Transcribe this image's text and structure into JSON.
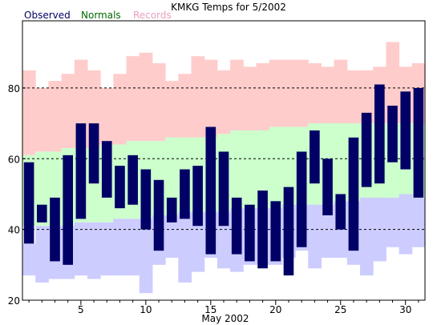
{
  "chart_data": {
    "type": "bar",
    "title": "KMKG Temps for 5/2002",
    "xlabel": "May 2002",
    "ylabel": "",
    "xlim": [
      0.5,
      31.5
    ],
    "ylim": [
      20,
      99
    ],
    "x_ticks": [
      5,
      10,
      15,
      20,
      25,
      30
    ],
    "y_ticks": [
      20,
      40,
      60,
      80
    ],
    "grid": "dashed horizontal at 40, 60, 80",
    "legend": {
      "placement": "top-left",
      "entries": [
        {
          "label": "Observed",
          "color": "#000066"
        },
        {
          "label": "Normals",
          "color": "#006600"
        },
        {
          "label": "Records",
          "color": "#e8a0c0"
        }
      ]
    },
    "colors": {
      "observed": "#000066",
      "normals_band": "#ccffcc",
      "records_high_band": "#ffcccc",
      "records_low_band": "#ccccff",
      "grid": "#000000"
    },
    "days": [
      1,
      2,
      3,
      4,
      5,
      6,
      7,
      8,
      9,
      10,
      11,
      12,
      13,
      14,
      15,
      16,
      17,
      18,
      19,
      20,
      21,
      22,
      23,
      24,
      25,
      26,
      27,
      28,
      29,
      30,
      31
    ],
    "series": [
      {
        "name": "Records",
        "type": "band_high",
        "upper": [
          85,
          80,
          82,
          84,
          88,
          85,
          80,
          84,
          89,
          90,
          87,
          82,
          84,
          89,
          88,
          85,
          88,
          86,
          87,
          88,
          88,
          88,
          87,
          86,
          88,
          85,
          85,
          86,
          93,
          86,
          87
        ],
        "lower": [
          61,
          62,
          62,
          63,
          63,
          63,
          64,
          64,
          65,
          65,
          65,
          66,
          66,
          66,
          66,
          67,
          68,
          68,
          68,
          69,
          69,
          69,
          70,
          70,
          70,
          70,
          70,
          70,
          70,
          70,
          70
        ]
      },
      {
        "name": "Normals",
        "type": "band",
        "upper": [
          61,
          62,
          62,
          63,
          63,
          63,
          64,
          64,
          65,
          65,
          65,
          66,
          66,
          66,
          66,
          67,
          68,
          68,
          68,
          69,
          69,
          69,
          70,
          70,
          70,
          70,
          70,
          70,
          70,
          70,
          70
        ],
        "lower": [
          41,
          41,
          41,
          41,
          42,
          42,
          42,
          43,
          43,
          43,
          44,
          44,
          45,
          45,
          45,
          45,
          46,
          46,
          46,
          46,
          47,
          47,
          47,
          47,
          48,
          48,
          48,
          48,
          49,
          49,
          49
        ]
      },
      {
        "name": "Records",
        "type": "band_low",
        "upper": [
          36,
          41,
          41,
          41,
          42,
          42,
          42,
          43,
          43,
          43,
          44,
          44,
          45,
          45,
          45,
          45,
          46,
          46,
          46,
          46,
          47,
          47,
          47,
          47,
          48,
          48,
          49,
          49,
          49,
          50,
          49
        ],
        "lower": [
          27,
          25,
          26,
          26,
          27,
          26,
          27,
          27,
          27,
          22,
          30,
          32,
          25,
          28,
          32,
          29,
          28,
          30,
          30,
          30,
          32,
          34,
          29,
          32,
          32,
          30,
          27,
          31,
          35,
          33,
          35
        ]
      },
      {
        "name": "Observed",
        "type": "range_bar",
        "low": [
          36,
          42,
          31,
          30,
          43,
          53,
          49,
          46,
          47,
          40,
          34,
          42,
          43,
          41,
          33,
          41,
          33,
          31,
          29,
          31,
          27,
          35,
          53,
          44,
          40,
          34,
          52,
          53,
          59,
          57,
          49
        ],
        "high": [
          59,
          47,
          49,
          61,
          70,
          70,
          65,
          58,
          61,
          57,
          54,
          49,
          57,
          58,
          69,
          62,
          49,
          47,
          51,
          48,
          52,
          62,
          68,
          60,
          50,
          66,
          73,
          81,
          75,
          79,
          80
        ]
      }
    ]
  }
}
